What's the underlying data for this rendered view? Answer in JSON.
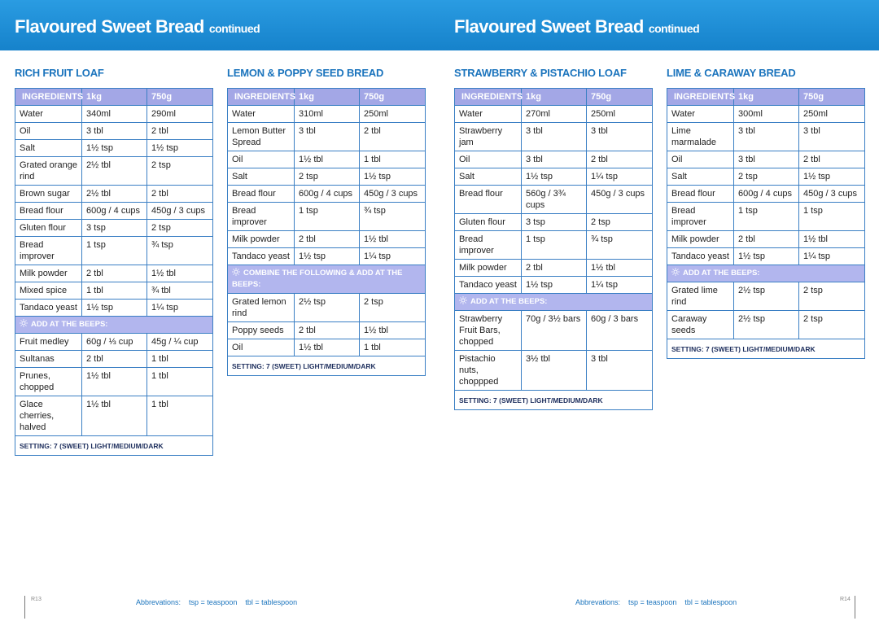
{
  "pages": [
    {
      "title": "Flavoured Sweet Bread",
      "title_suffix": "continued",
      "page_number": "R13",
      "abbreviations_label": "Abbrevations:",
      "abbreviations": [
        "tsp = teaspoon",
        "tbl = tablespoon"
      ],
      "recipes": [
        {
          "title": "RICH FRUIT LOAF",
          "headers": [
            "INGREDIENTS",
            "1kg",
            "750g"
          ],
          "groups": [
            {
              "rows": [
                [
                  "Water",
                  "340ml",
                  "290ml"
                ],
                [
                  "Oil",
                  "3 tbl",
                  "2 tbl"
                ],
                [
                  "Salt",
                  "1½ tsp",
                  "1½ tsp"
                ],
                [
                  "Grated orange rind",
                  "2½ tbl",
                  "2 tsp"
                ],
                [
                  "Brown sugar",
                  "2½ tbl",
                  "2 tbl"
                ],
                [
                  "Bread flour",
                  "600g / 4 cups",
                  "450g / 3 cups"
                ],
                [
                  "Gluten flour",
                  "3 tsp",
                  "2 tsp"
                ],
                [
                  "Bread improver",
                  "1 tsp",
                  "¾ tsp"
                ],
                [
                  "Milk powder",
                  "2 tbl",
                  "1½ tbl"
                ],
                [
                  "Mixed spice",
                  "1 tbl",
                  "¾ tbl"
                ],
                [
                  "Tandaco yeast",
                  "1½ tsp",
                  "1¼ tsp"
                ]
              ]
            },
            {
              "note": "ADD AT THE BEEPS:",
              "rows": [
                [
                  "Fruit medley",
                  "60g / ⅓ cup",
                  "45g / ¼ cup"
                ],
                [
                  "Sultanas",
                  "2 tbl",
                  "1 tbl"
                ],
                [
                  "Prunes, chopped",
                  "1½ tbl",
                  "1 tbl"
                ],
                [
                  "Glace cherries, halved",
                  "1½ tbl",
                  "1 tbl"
                ]
              ]
            }
          ],
          "setting": "SETTING: 7 (SWEET) LIGHT/MEDIUM/DARK"
        },
        {
          "title": "LEMON & POPPY SEED BREAD",
          "headers": [
            "INGREDIENTS",
            "1kg",
            "750g"
          ],
          "groups": [
            {
              "rows": [
                [
                  "Water",
                  "310ml",
                  "250ml"
                ],
                [
                  "Lemon Butter Spread",
                  "3 tbl",
                  "2 tbl"
                ],
                [
                  "Oil",
                  "1½ tbl",
                  "1 tbl"
                ],
                [
                  "Salt",
                  "2 tsp",
                  "1½ tsp"
                ],
                [
                  "Bread flour",
                  "600g / 4 cups",
                  "450g / 3 cups"
                ],
                [
                  "Bread improver",
                  "1 tsp",
                  "¾ tsp"
                ],
                [
                  "Milk powder",
                  "2 tbl",
                  "1½ tbl"
                ],
                [
                  "Tandaco yeast",
                  "1½ tsp",
                  "1¼ tsp"
                ]
              ]
            },
            {
              "note": "COMBINE THE FOLLOWING & ADD AT THE BEEPS:",
              "rows": [
                [
                  "Grated lemon rind",
                  "2½ tsp",
                  "2 tsp"
                ],
                [
                  "Poppy seeds",
                  "2 tbl",
                  "1½ tbl"
                ],
                [
                  "Oil",
                  "1½ tbl",
                  "1 tbl"
                ]
              ]
            }
          ],
          "setting": "SETTING: 7 (SWEET) LIGHT/MEDIUM/DARK"
        }
      ]
    },
    {
      "title": "Flavoured Sweet Bread",
      "title_suffix": "continued",
      "page_number": "R14",
      "abbreviations_label": "Abbrevations:",
      "abbreviations": [
        "tsp = teaspoon",
        "tbl = tablespoon"
      ],
      "recipes": [
        {
          "title": "STRAWBERRY & PISTACHIO LOAF",
          "headers": [
            "INGREDIENTS",
            "1kg",
            "750g"
          ],
          "groups": [
            {
              "rows": [
                [
                  "Water",
                  "270ml",
                  "250ml"
                ],
                [
                  "Strawberry jam",
                  "3 tbl",
                  "3 tbl"
                ],
                [
                  "Oil",
                  "3 tbl",
                  "2 tbl"
                ],
                [
                  "Salt",
                  "1½ tsp",
                  "1¼ tsp"
                ],
                [
                  "Bread flour",
                  "560g / 3¾ cups",
                  "450g / 3 cups"
                ],
                [
                  "Gluten flour",
                  "3 tsp",
                  "2 tsp"
                ],
                [
                  "Bread improver",
                  "1 tsp",
                  "¾ tsp"
                ],
                [
                  "Milk powder",
                  "2 tbl",
                  "1½ tbl"
                ],
                [
                  "Tandaco yeast",
                  "1½ tsp",
                  "1¼ tsp"
                ]
              ]
            },
            {
              "note": "ADD AT THE BEEPS:",
              "rows": [
                [
                  "Strawberry Fruit Bars, chopped",
                  "70g / 3½ bars",
                  "60g / 3 bars"
                ],
                [
                  "Pistachio nuts, choppped",
                  "3½ tbl",
                  "3 tbl"
                ]
              ]
            }
          ],
          "setting": "SETTING: 7 (SWEET) LIGHT/MEDIUM/DARK"
        },
        {
          "title": "LIME & CARAWAY BREAD",
          "headers": [
            "INGREDIENTS",
            "1kg",
            "750g"
          ],
          "groups": [
            {
              "rows": [
                [
                  "Water",
                  "300ml",
                  "250ml"
                ],
                [
                  "Lime marmalade",
                  "3 tbl",
                  "3 tbl"
                ],
                [
                  "Oil",
                  "3 tbl",
                  "2 tbl"
                ],
                [
                  "Salt",
                  "2 tsp",
                  "1½ tsp"
                ],
                [
                  "Bread flour",
                  "600g / 4 cups",
                  "450g / 3 cups"
                ],
                [
                  "Bread improver",
                  "1 tsp",
                  "1 tsp"
                ],
                [
                  "Milk powder",
                  "2 tbl",
                  "1½ tbl"
                ],
                [
                  "Tandaco yeast",
                  "1½ tsp",
                  "1¼ tsp"
                ]
              ]
            },
            {
              "note": "ADD AT THE BEEPS:",
              "rows": [
                [
                  "Grated lime rind",
                  "2½ tsp",
                  "2 tsp"
                ],
                [
                  "Caraway seeds",
                  "2½ tsp",
                  "2 tsp"
                ]
              ]
            }
          ],
          "setting": "SETTING: 7 (SWEET) LIGHT/MEDIUM/DARK"
        }
      ]
    }
  ]
}
